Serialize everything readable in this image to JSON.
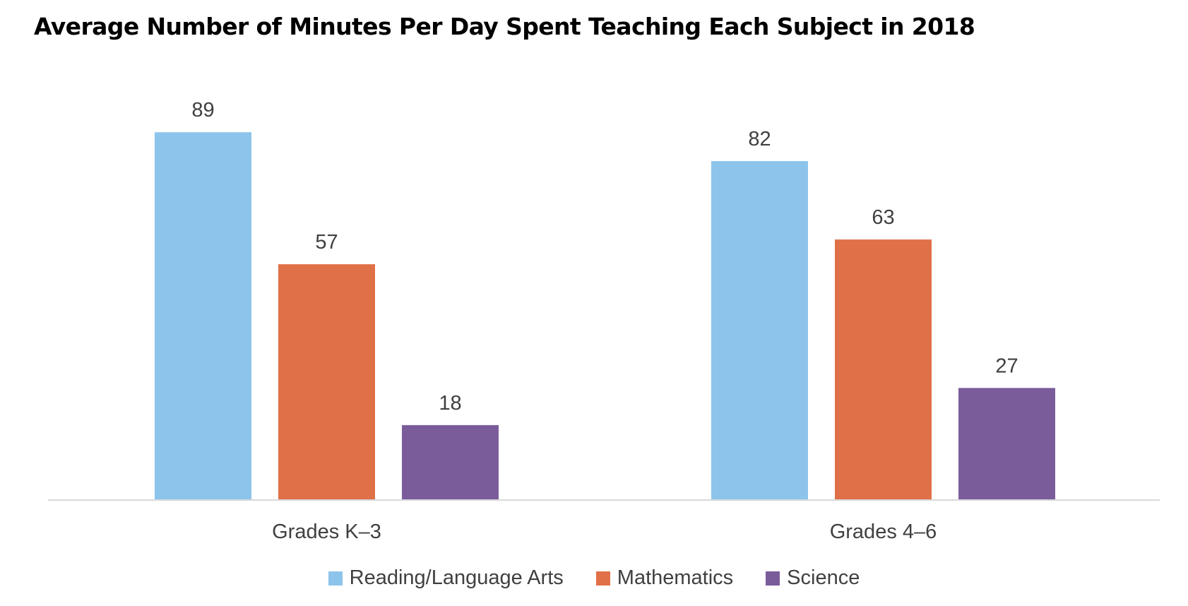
{
  "chart_data": {
    "type": "bar",
    "title": "Average Number of Minutes Per Day Spent Teaching Each Subject in 2018",
    "categories": [
      "Grades K–3",
      "Grades 4–6"
    ],
    "series": [
      {
        "name": "Reading/Language Arts",
        "values": [
          89,
          82
        ],
        "color": "#8DC4EC"
      },
      {
        "name": "Mathematics",
        "values": [
          57,
          63
        ],
        "color": "#E07048"
      },
      {
        "name": "Science",
        "values": [
          18,
          27
        ],
        "color": "#7B5C9B"
      }
    ],
    "ylim": [
      0,
      100
    ],
    "grid": false,
    "legend_position": "bottom"
  }
}
